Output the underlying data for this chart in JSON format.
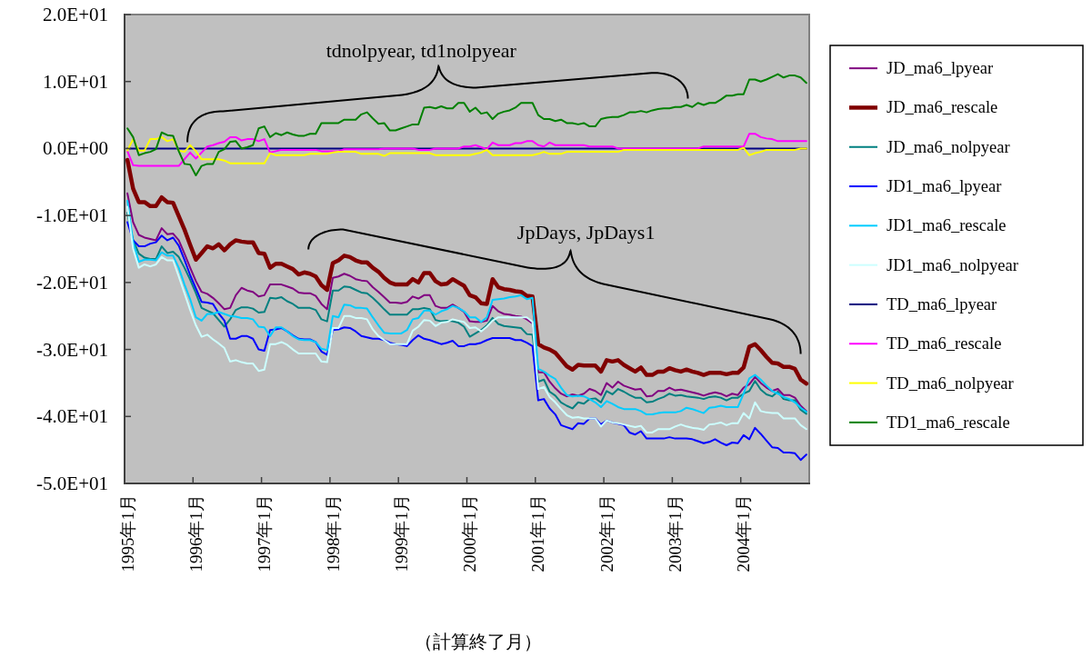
{
  "chart_data": {
    "type": "line",
    "xlabel": "（計算終了月）",
    "categories": [
      "1995年1月",
      null,
      null,
      null,
      null,
      null,
      null,
      null,
      null,
      null,
      null,
      null,
      "1996年1月",
      null,
      null,
      null,
      null,
      null,
      null,
      null,
      null,
      null,
      null,
      null,
      "1997年1月",
      null,
      null,
      null,
      null,
      null,
      null,
      null,
      null,
      null,
      null,
      null,
      "1998年1月",
      null,
      null,
      null,
      null,
      null,
      null,
      null,
      null,
      null,
      null,
      null,
      "1999年1月",
      null,
      null,
      null,
      null,
      null,
      null,
      null,
      null,
      null,
      null,
      null,
      "2000年1月",
      null,
      null,
      null,
      null,
      null,
      null,
      null,
      null,
      null,
      null,
      null,
      "2001年1月",
      null,
      null,
      null,
      null,
      null,
      null,
      null,
      null,
      null,
      null,
      null,
      "2002年1月",
      null,
      null,
      null,
      null,
      null,
      null,
      null,
      null,
      null,
      null,
      null,
      "2003年1月",
      null,
      null,
      null,
      null,
      null,
      null,
      null,
      null,
      null,
      null,
      null,
      "2004年1月",
      null,
      null,
      null,
      null,
      null,
      null,
      null,
      null,
      null,
      null,
      null
    ],
    "ylim": [
      -50,
      20
    ],
    "yticks": [
      {
        "value": 20,
        "label": "2.0E+01"
      },
      {
        "value": 10,
        "label": "1.0E+01"
      },
      {
        "value": 0,
        "label": "0.0E+00"
      },
      {
        "value": -10,
        "label": "-1.0E+01"
      },
      {
        "value": -20,
        "label": "-2.0E+01"
      },
      {
        "value": -30,
        "label": "-3.0E+01"
      },
      {
        "value": -40,
        "label": "-4.0E+01"
      },
      {
        "value": -50,
        "label": "-5.0E+01"
      }
    ],
    "legend": "right",
    "line_style": "solid",
    "annotations": [
      "tdnolpyear, td1nolpyear",
      "JpDays, JpDays1"
    ],
    "series": [
      {
        "name": "JD_ma6_lpyear",
        "color": "#800080",
        "values": [
          -6.7,
          -11.0,
          -12.9,
          -13.3,
          -13.5,
          -13.7,
          -11.9,
          -12.8,
          -12.7,
          -13.7,
          -15.7,
          -17.8,
          -19.8,
          -21.4,
          -21.7,
          -22.3,
          -23.1,
          -24.0,
          -23.8,
          -21.9,
          -20.8,
          -21.2,
          -21.4,
          -22.1,
          -21.9,
          -20.3,
          -20.3,
          -20.3,
          -20.6,
          -20.9,
          -21.5,
          -21.6,
          -21.6,
          -22.0,
          -23.2,
          -24.0,
          -19.3,
          -19.1,
          -18.7,
          -19.0,
          -19.5,
          -19.7,
          -19.8,
          -20.7,
          -21.4,
          -22.2,
          -23.0,
          -23.0,
          -23.1,
          -22.9,
          -22.1,
          -22.4,
          -21.9,
          -21.9,
          -23.5,
          -23.8,
          -23.8,
          -23.3,
          -23.8,
          -24.4,
          -25.8,
          -25.9,
          -25.9,
          -25.7,
          -23.5,
          -24.3,
          -24.7,
          -24.8,
          -25.0,
          -25.1,
          -25.5,
          -26.1,
          -33.4,
          -33.4,
          -34.8,
          -35.8,
          -36.6,
          -37.0,
          -36.7,
          -36.9,
          -36.6,
          -35.9,
          -36.2,
          -36.8,
          -35.0,
          -35.7,
          -34.8,
          -35.4,
          -35.7,
          -36.0,
          -35.9,
          -37.0,
          -36.9,
          -36.2,
          -36.2,
          -35.7,
          -36.1,
          -36.0,
          -36.2,
          -36.4,
          -36.6,
          -36.9,
          -36.6,
          -36.4,
          -36.6,
          -37.0,
          -36.6,
          -36.8,
          -35.7,
          -35.2,
          -34.1,
          -35.0,
          -35.7,
          -36.2,
          -35.9,
          -36.8,
          -36.8,
          -37.2,
          -38.4,
          -39.2
        ]
      },
      {
        "name": "JD_ma6_rescale",
        "color": "#800000",
        "values": [
          -1.7,
          -6.0,
          -8.0,
          -8.0,
          -8.6,
          -8.6,
          -7.3,
          -8.0,
          -8.1,
          -10.1,
          -12.1,
          -14.4,
          -16.6,
          -15.6,
          -14.6,
          -14.9,
          -14.3,
          -15.2,
          -14.3,
          -13.7,
          -13.9,
          -14.0,
          -14.0,
          -15.6,
          -15.7,
          -17.8,
          -17.2,
          -17.2,
          -17.6,
          -18.0,
          -18.8,
          -18.5,
          -18.7,
          -19.1,
          -20.4,
          -21.1,
          -17.1,
          -16.7,
          -16.0,
          -16.2,
          -16.7,
          -17.0,
          -17.0,
          -17.8,
          -18.4,
          -19.3,
          -20.0,
          -20.3,
          -20.3,
          -20.3,
          -19.5,
          -20.0,
          -18.6,
          -18.6,
          -19.8,
          -20.3,
          -20.2,
          -19.5,
          -20.0,
          -20.5,
          -21.9,
          -22.2,
          -23.1,
          -23.2,
          -19.5,
          -20.7,
          -21.0,
          -21.1,
          -21.3,
          -21.4,
          -22.0,
          -22.1,
          -29.2,
          -29.7,
          -30.0,
          -30.5,
          -31.5,
          -32.5,
          -33.0,
          -32.3,
          -32.4,
          -32.4,
          -32.4,
          -33.3,
          -31.6,
          -31.8,
          -31.6,
          -32.3,
          -32.8,
          -33.3,
          -32.7,
          -33.8,
          -33.8,
          -33.3,
          -33.3,
          -32.8,
          -33.1,
          -33.3,
          -33.0,
          -33.3,
          -33.5,
          -33.8,
          -33.5,
          -33.5,
          -33.5,
          -33.7,
          -33.5,
          -33.5,
          -32.7,
          -29.6,
          -29.2,
          -30.1,
          -31.1,
          -32.0,
          -32.1,
          -32.6,
          -32.6,
          -32.9,
          -34.5,
          -35.1
        ]
      },
      {
        "name": "JD_ma6_nolpyear",
        "color": "#008080",
        "values": [
          -9.6,
          -13.7,
          -15.7,
          -16.3,
          -16.5,
          -16.5,
          -14.6,
          -15.6,
          -15.4,
          -16.2,
          -17.8,
          -19.6,
          -21.6,
          -23.8,
          -24.2,
          -24.6,
          -25.6,
          -26.6,
          -25.5,
          -24.1,
          -23.7,
          -23.7,
          -23.9,
          -24.5,
          -24.4,
          -22.3,
          -22.4,
          -22.2,
          -22.8,
          -23.2,
          -23.8,
          -23.8,
          -23.8,
          -24.1,
          -25.5,
          -25.8,
          -21.2,
          -21.2,
          -20.6,
          -20.7,
          -21.1,
          -21.5,
          -21.6,
          -22.3,
          -23.1,
          -24.0,
          -24.8,
          -24.8,
          -24.8,
          -24.8,
          -24.0,
          -24.0,
          -23.8,
          -24.0,
          -25.6,
          -25.8,
          -25.7,
          -25.8,
          -26.0,
          -26.6,
          -28.1,
          -27.6,
          -27.1,
          -26.4,
          -25.3,
          -26.2,
          -26.5,
          -26.6,
          -26.7,
          -26.8,
          -27.7,
          -27.8,
          -34.8,
          -34.5,
          -36.3,
          -36.9,
          -37.9,
          -38.4,
          -38.8,
          -37.9,
          -38.1,
          -37.4,
          -37.3,
          -37.9,
          -36.2,
          -36.7,
          -35.9,
          -36.3,
          -36.8,
          -37.2,
          -37.2,
          -37.9,
          -37.8,
          -37.4,
          -37.1,
          -36.6,
          -36.9,
          -36.8,
          -37.0,
          -37.1,
          -37.2,
          -37.4,
          -37.1,
          -37.0,
          -37.2,
          -37.6,
          -37.2,
          -37.2,
          -36.6,
          -36.2,
          -34.7,
          -36.0,
          -36.7,
          -37.0,
          -36.3,
          -37.4,
          -37.6,
          -37.6,
          -39.0,
          -39.6
        ]
      },
      {
        "name": "JD1_ma6_lpyear",
        "color": "#0000ff",
        "values": [
          -11.0,
          -13.7,
          -14.6,
          -14.6,
          -14.2,
          -14.0,
          -13.0,
          -13.7,
          -13.3,
          -14.5,
          -16.6,
          -18.9,
          -20.9,
          -22.9,
          -23.0,
          -23.2,
          -24.6,
          -25.7,
          -28.4,
          -28.4,
          -28.0,
          -28.0,
          -28.4,
          -30.0,
          -30.2,
          -27.1,
          -27.0,
          -26.8,
          -27.3,
          -27.9,
          -28.4,
          -28.5,
          -28.5,
          -28.9,
          -30.3,
          -30.8,
          -27.1,
          -27.0,
          -26.7,
          -26.8,
          -27.3,
          -28.0,
          -28.2,
          -28.4,
          -28.4,
          -28.6,
          -29.0,
          -29.2,
          -29.3,
          -29.5,
          -28.6,
          -27.9,
          -28.4,
          -28.6,
          -28.9,
          -29.2,
          -29.0,
          -28.7,
          -29.5,
          -29.5,
          -29.2,
          -29.2,
          -29.0,
          -28.6,
          -28.3,
          -28.3,
          -28.3,
          -28.3,
          -28.6,
          -28.6,
          -29.0,
          -29.5,
          -37.6,
          -37.4,
          -38.8,
          -39.7,
          -41.3,
          -41.6,
          -41.9,
          -41.0,
          -41.1,
          -40.3,
          -40.3,
          -41.2,
          -40.6,
          -40.9,
          -41.1,
          -41.3,
          -42.4,
          -42.7,
          -42.2,
          -43.3,
          -43.3,
          -43.3,
          -43.3,
          -43.1,
          -43.3,
          -43.3,
          -43.3,
          -43.4,
          -43.7,
          -44.0,
          -43.8,
          -43.4,
          -43.9,
          -44.3,
          -43.9,
          -44.0,
          -42.8,
          -43.4,
          -41.7,
          -42.6,
          -43.6,
          -44.6,
          -44.7,
          -45.4,
          -45.4,
          -45.5,
          -46.5,
          -45.7
        ]
      },
      {
        "name": "JD1_ma6_rescale",
        "color": "#00ccff",
        "values": [
          -7.8,
          -14.0,
          -16.9,
          -16.6,
          -16.6,
          -16.7,
          -15.5,
          -16.0,
          -16.0,
          -17.8,
          -20.3,
          -22.5,
          -25.2,
          -25.7,
          -24.7,
          -24.7,
          -24.4,
          -24.7,
          -25.0,
          -25.1,
          -25.3,
          -25.3,
          -25.5,
          -26.6,
          -26.7,
          -28.0,
          -26.7,
          -26.7,
          -27.3,
          -28.0,
          -28.5,
          -28.6,
          -28.6,
          -28.9,
          -29.9,
          -30.1,
          -25.0,
          -25.2,
          -23.3,
          -23.4,
          -23.8,
          -23.8,
          -23.9,
          -25.2,
          -26.4,
          -27.5,
          -27.6,
          -27.6,
          -27.6,
          -27.1,
          -25.5,
          -25.3,
          -24.2,
          -24.2,
          -24.8,
          -24.3,
          -24.0,
          -23.5,
          -23.8,
          -24.3,
          -25.2,
          -25.2,
          -25.9,
          -25.2,
          -22.6,
          -22.5,
          -22.4,
          -22.2,
          -22.1,
          -21.9,
          -22.5,
          -22.3,
          -32.9,
          -33.3,
          -33.9,
          -34.4,
          -35.7,
          -36.8,
          -37.0,
          -36.9,
          -37.0,
          -37.4,
          -37.9,
          -38.6,
          -37.7,
          -38.1,
          -38.6,
          -38.9,
          -38.9,
          -38.9,
          -39.2,
          -39.7,
          -39.7,
          -39.5,
          -39.4,
          -39.4,
          -39.4,
          -39.2,
          -38.7,
          -38.9,
          -39.2,
          -39.5,
          -38.7,
          -38.6,
          -38.4,
          -38.6,
          -38.6,
          -38.6,
          -36.6,
          -34.3,
          -33.8,
          -34.5,
          -35.4,
          -36.2,
          -36.6,
          -37.1,
          -37.4,
          -37.9,
          -38.7,
          -39.3
        ]
      },
      {
        "name": "JD1_ma6_nolpyear",
        "color": "#ccffff",
        "values": [
          -8.7,
          -15.0,
          -17.8,
          -17.3,
          -17.6,
          -17.3,
          -16.2,
          -16.7,
          -16.7,
          -19.1,
          -21.6,
          -24.1,
          -26.4,
          -28.1,
          -27.8,
          -28.5,
          -29.1,
          -29.8,
          -31.8,
          -31.6,
          -31.9,
          -32.1,
          -32.1,
          -33.2,
          -33.0,
          -29.2,
          -29.2,
          -28.9,
          -29.3,
          -30.0,
          -30.6,
          -30.6,
          -30.6,
          -30.6,
          -31.8,
          -31.9,
          -26.8,
          -26.8,
          -25.0,
          -25.0,
          -25.3,
          -25.3,
          -25.5,
          -27.0,
          -28.0,
          -28.6,
          -29.2,
          -29.2,
          -29.2,
          -29.2,
          -27.2,
          -26.6,
          -25.6,
          -25.7,
          -26.5,
          -26.0,
          -25.9,
          -25.5,
          -25.7,
          -25.9,
          -26.8,
          -26.7,
          -27.3,
          -26.6,
          -25.7,
          -25.2,
          -25.2,
          -25.2,
          -25.2,
          -25.2,
          -25.2,
          -25.9,
          -35.9,
          -35.6,
          -37.1,
          -37.9,
          -38.9,
          -39.8,
          -40.2,
          -40.1,
          -40.3,
          -40.3,
          -40.3,
          -41.5,
          -40.6,
          -40.9,
          -41.0,
          -41.2,
          -41.4,
          -41.6,
          -41.4,
          -42.4,
          -42.4,
          -41.9,
          -41.9,
          -41.9,
          -41.5,
          -41.2,
          -41.5,
          -41.7,
          -41.8,
          -42.0,
          -41.2,
          -41.1,
          -40.9,
          -41.3,
          -41.0,
          -41.0,
          -39.5,
          -40.3,
          -37.9,
          -39.2,
          -39.4,
          -39.5,
          -39.5,
          -40.3,
          -40.3,
          -40.3,
          -41.3,
          -41.9
        ]
      },
      {
        "name": "TD_ma6_lpyear",
        "color": "#000080",
        "values": [
          0,
          0,
          0,
          0,
          0,
          0,
          0,
          0,
          0,
          0,
          0,
          0,
          0,
          0,
          0,
          0,
          0,
          0,
          0,
          0,
          0,
          0,
          0,
          0,
          0,
          0,
          0,
          0,
          0,
          0,
          0,
          0,
          0,
          0,
          0,
          0,
          0,
          0,
          0,
          0,
          0,
          0,
          0,
          0,
          0,
          0,
          0,
          0,
          0,
          0,
          0,
          0,
          0,
          0,
          0,
          0,
          0,
          0,
          0,
          0,
          0,
          0,
          0,
          0,
          0,
          0,
          0,
          0,
          0,
          0,
          0,
          0,
          0,
          0,
          0,
          0,
          0,
          0,
          0,
          0,
          0,
          0,
          0,
          0,
          0,
          0,
          0,
          0,
          0,
          0,
          0,
          0,
          0,
          0,
          0,
          0,
          0,
          0,
          0,
          0,
          0,
          0,
          0,
          0,
          0,
          0,
          0,
          0,
          0,
          0,
          0,
          0,
          0,
          0,
          0,
          0,
          0,
          0,
          0,
          0
        ]
      },
      {
        "name": "TD_ma6_rescale",
        "color": "#ff00ff",
        "values": [
          -0.4,
          -2.5,
          -2.6,
          -2.6,
          -2.6,
          -2.6,
          -2.6,
          -2.6,
          -2.6,
          -2.6,
          -1.6,
          -0.6,
          -1.5,
          -0.6,
          0.3,
          0.5,
          0.8,
          1.0,
          1.7,
          1.7,
          1.2,
          1.4,
          1.4,
          1.1,
          1.4,
          -0.6,
          -0.4,
          -0.2,
          -0.2,
          -0.2,
          -0.2,
          -0.2,
          -0.2,
          -0.2,
          -0.4,
          -0.4,
          -0.4,
          -0.4,
          -0.1,
          -0.1,
          -0.1,
          -0.1,
          -0.1,
          -0.1,
          -0.1,
          0,
          0,
          0,
          0,
          0,
          0,
          -0.2,
          -0.2,
          -0.2,
          0,
          0,
          0,
          0,
          0,
          0.3,
          0.3,
          0.5,
          0.2,
          -0.1,
          0.9,
          0.5,
          0.5,
          0.5,
          0.8,
          0.8,
          1.1,
          1.1,
          0.5,
          0.3,
          0.9,
          0.5,
          0.5,
          0.5,
          0.5,
          0.5,
          0.5,
          0.3,
          0.3,
          0.3,
          0.3,
          0.3,
          0,
          0,
          0,
          0,
          0,
          0,
          0,
          0,
          0,
          0,
          0,
          0,
          0,
          0,
          0,
          0.3,
          0.3,
          0.3,
          0.3,
          0.3,
          0.3,
          0.3,
          0.3,
          2.2,
          2.2,
          1.7,
          1.5,
          1.4,
          1.1,
          1.1,
          1.1,
          1.1,
          1.1,
          1.1
        ]
      },
      {
        "name": "TD_ma6_nolpyear",
        "color": "#ffff00",
        "values": [
          -0.3,
          1.4,
          -0.3,
          -0.3,
          1.4,
          1.4,
          1.7,
          1.1,
          1.4,
          -0.3,
          -0.5,
          0.5,
          -0.4,
          -1.6,
          -1.6,
          -1.6,
          -1.6,
          -1.8,
          -2.2,
          -2.2,
          -2.2,
          -2.2,
          -2.2,
          -2.2,
          -2.2,
          -0.7,
          -1.0,
          -1.0,
          -1.0,
          -1.0,
          -1.0,
          -1.0,
          -0.8,
          -0.8,
          -0.8,
          -0.8,
          -0.6,
          -0.5,
          -0.5,
          -0.5,
          -0.5,
          -0.8,
          -0.8,
          -0.8,
          -0.8,
          -1.1,
          -0.7,
          -0.7,
          -0.7,
          -0.7,
          -0.7,
          -0.7,
          -0.7,
          -0.7,
          -1.0,
          -1.0,
          -1.0,
          -1.0,
          -1.0,
          -1.0,
          -1.0,
          -0.8,
          -0.6,
          -0.2,
          -1.0,
          -1.0,
          -1.0,
          -1.0,
          -1.0,
          -1.0,
          -1.0,
          -1.0,
          -0.8,
          -0.5,
          -0.8,
          -0.8,
          -0.8,
          -0.5,
          -0.5,
          -0.5,
          -0.5,
          -0.5,
          -0.5,
          -0.5,
          -0.5,
          -0.5,
          -0.5,
          -0.2,
          -0.2,
          -0.2,
          -0.2,
          -0.2,
          -0.2,
          -0.2,
          -0.2,
          -0.2,
          -0.2,
          -0.2,
          -0.2,
          -0.2,
          -0.2,
          -0.2,
          -0.2,
          -0.2,
          -0.2,
          -0.2,
          -0.2,
          -0.2,
          0.1,
          -1.0,
          -0.7,
          -0.5,
          -0.2,
          -0.2,
          -0.2,
          -0.2,
          -0.2,
          -0.2,
          0,
          0
        ]
      },
      {
        "name": "TD1_ma6_rescale",
        "color": "#008000",
        "values": [
          3.0,
          1.7,
          -1.0,
          -0.7,
          -0.5,
          -0.1,
          2.4,
          2.0,
          1.9,
          -0.4,
          -2.3,
          -2.4,
          -4.0,
          -2.6,
          -2.3,
          -2.3,
          -0.5,
          -0.1,
          1.0,
          1.1,
          0,
          0.2,
          0.5,
          3.0,
          3.3,
          1.7,
          2.3,
          2.0,
          2.4,
          2.1,
          1.9,
          1.9,
          2.2,
          2.2,
          3.8,
          3.8,
          3.8,
          3.8,
          4.3,
          4.3,
          4.3,
          5.1,
          5.4,
          4.5,
          3.7,
          3.8,
          2.7,
          2.7,
          3.0,
          3.3,
          3.6,
          3.6,
          6.1,
          6.2,
          6.0,
          6.3,
          6.0,
          6.0,
          6.8,
          6.8,
          5.5,
          6.1,
          5.2,
          5.4,
          4.4,
          5.2,
          5.5,
          5.7,
          6.1,
          6.8,
          6.8,
          6.8,
          5.0,
          4.4,
          4.4,
          4.1,
          4.3,
          3.8,
          3.8,
          3.6,
          3.8,
          3.3,
          3.3,
          4.4,
          4.6,
          4.7,
          4.7,
          5.0,
          5.4,
          5.4,
          5.6,
          5.4,
          5.7,
          5.9,
          6.0,
          6.0,
          6.2,
          6.2,
          6.5,
          6.2,
          6.8,
          6.5,
          6.8,
          6.8,
          7.3,
          7.9,
          7.9,
          8.1,
          8.1,
          10.3,
          10.3,
          10.0,
          10.3,
          10.7,
          11.1,
          10.6,
          10.9,
          10.9,
          10.6,
          9.8
        ]
      }
    ]
  }
}
